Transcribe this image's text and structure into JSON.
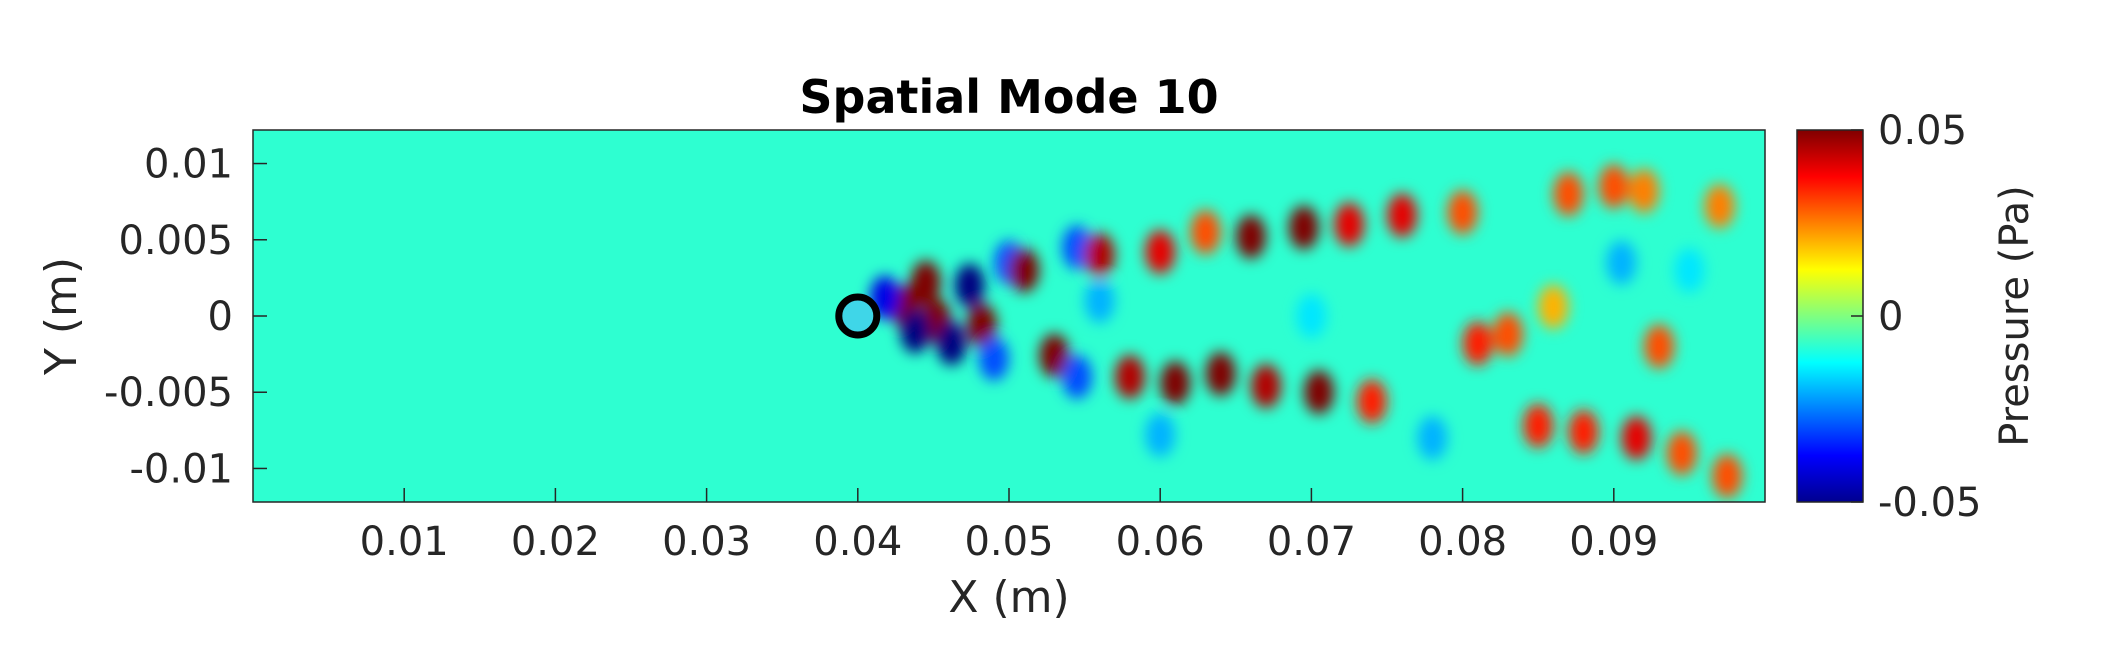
{
  "chart_data": {
    "type": "heatmap",
    "title": "Spatial Mode 10",
    "xlabel": "X (m)",
    "ylabel": "Y (m)",
    "xlim": [
      0,
      0.1
    ],
    "ylim": [
      -0.0122,
      0.0122
    ],
    "xticks": [
      0.01,
      0.02,
      0.03,
      0.04,
      0.05,
      0.06,
      0.07,
      0.08,
      0.09
    ],
    "xtick_labels": [
      "0.01",
      "0.02",
      "0.03",
      "0.04",
      "0.05",
      "0.06",
      "0.07",
      "0.08",
      "0.09"
    ],
    "yticks": [
      0.01,
      0.005,
      0,
      -0.005,
      -0.01
    ],
    "ytick_labels": [
      "0.01",
      "0.005",
      "0",
      "-0.005",
      "-0.01"
    ],
    "colorbar": {
      "label": "Pressure (Pa)",
      "range": [
        -0.05,
        0.05
      ],
      "ticks": [
        0.05,
        0,
        -0.05
      ],
      "tick_labels": [
        "0.05",
        "0",
        "-0.05"
      ],
      "colormap": "jet"
    },
    "cylinder": {
      "x": 0.04,
      "y": 0,
      "fill": "#3fd6e8",
      "ring": "#000000"
    },
    "background_value": -0.008,
    "blobs": [
      {
        "x": 0.0445,
        "y": 0.0022,
        "v": 0.05
      },
      {
        "x": 0.0432,
        "y": 0.0006,
        "v": 0.05
      },
      {
        "x": 0.0452,
        "y": -0.0003,
        "v": 0.05
      },
      {
        "x": 0.0438,
        "y": -0.001,
        "v": -0.05
      },
      {
        "x": 0.0418,
        "y": 0.0012,
        "v": -0.04
      },
      {
        "x": 0.0474,
        "y": 0.002,
        "v": -0.05
      },
      {
        "x": 0.0482,
        "y": -0.0006,
        "v": 0.05
      },
      {
        "x": 0.0462,
        "y": -0.0018,
        "v": -0.05
      },
      {
        "x": 0.05,
        "y": 0.0035,
        "v": -0.03
      },
      {
        "x": 0.049,
        "y": -0.0028,
        "v": -0.03
      },
      {
        "x": 0.051,
        "y": 0.003,
        "v": 0.05
      },
      {
        "x": 0.053,
        "y": -0.0026,
        "v": 0.05
      },
      {
        "x": 0.0545,
        "y": 0.0045,
        "v": -0.03
      },
      {
        "x": 0.056,
        "y": 0.004,
        "v": 0.045
      },
      {
        "x": 0.0545,
        "y": -0.004,
        "v": -0.03
      },
      {
        "x": 0.058,
        "y": -0.004,
        "v": 0.045
      },
      {
        "x": 0.06,
        "y": 0.0042,
        "v": 0.04
      },
      {
        "x": 0.061,
        "y": -0.0044,
        "v": 0.05
      },
      {
        "x": 0.063,
        "y": 0.0055,
        "v": 0.03
      },
      {
        "x": 0.064,
        "y": -0.0038,
        "v": 0.05
      },
      {
        "x": 0.066,
        "y": 0.0052,
        "v": 0.05
      },
      {
        "x": 0.067,
        "y": -0.0046,
        "v": 0.045
      },
      {
        "x": 0.0695,
        "y": 0.0058,
        "v": 0.05
      },
      {
        "x": 0.0705,
        "y": -0.005,
        "v": 0.05
      },
      {
        "x": 0.0725,
        "y": 0.006,
        "v": 0.04
      },
      {
        "x": 0.074,
        "y": -0.0056,
        "v": 0.035
      },
      {
        "x": 0.076,
        "y": 0.0066,
        "v": 0.04
      },
      {
        "x": 0.08,
        "y": 0.0068,
        "v": 0.03
      },
      {
        "x": 0.081,
        "y": -0.0018,
        "v": 0.035
      },
      {
        "x": 0.083,
        "y": -0.0012,
        "v": 0.03
      },
      {
        "x": 0.086,
        "y": 0.0006,
        "v": 0.02
      },
      {
        "x": 0.087,
        "y": 0.008,
        "v": 0.03
      },
      {
        "x": 0.09,
        "y": 0.0085,
        "v": 0.03
      },
      {
        "x": 0.092,
        "y": 0.0082,
        "v": 0.025
      },
      {
        "x": 0.093,
        "y": -0.002,
        "v": 0.03
      },
      {
        "x": 0.085,
        "y": -0.0072,
        "v": 0.035
      },
      {
        "x": 0.088,
        "y": -0.0076,
        "v": 0.035
      },
      {
        "x": 0.0915,
        "y": -0.008,
        "v": 0.04
      },
      {
        "x": 0.0945,
        "y": -0.009,
        "v": 0.03
      },
      {
        "x": 0.0975,
        "y": -0.0105,
        "v": 0.03
      },
      {
        "x": 0.097,
        "y": 0.0072,
        "v": 0.025
      },
      {
        "x": 0.0905,
        "y": 0.0035,
        "v": -0.02
      },
      {
        "x": 0.095,
        "y": 0.003,
        "v": -0.015
      },
      {
        "x": 0.078,
        "y": -0.008,
        "v": -0.02
      },
      {
        "x": 0.07,
        "y": 0.0,
        "v": -0.015
      },
      {
        "x": 0.06,
        "y": -0.0078,
        "v": -0.02
      },
      {
        "x": 0.056,
        "y": 0.001,
        "v": -0.02
      }
    ]
  }
}
